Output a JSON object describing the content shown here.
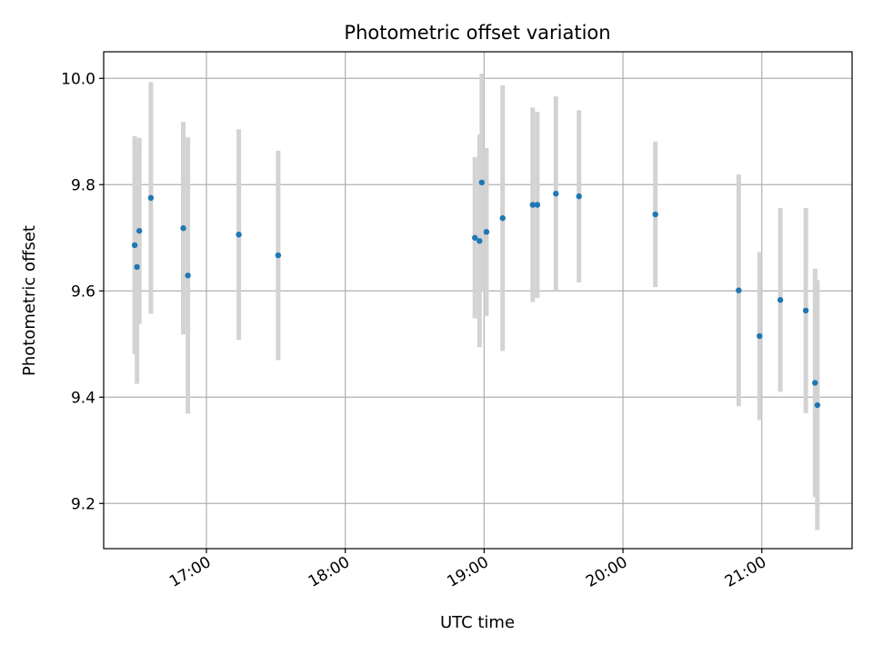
{
  "chart_data": {
    "type": "scatter",
    "title": "Photometric offset variation",
    "xlabel": "UTC time",
    "ylabel": "Photometric offset",
    "xlim_hours": [
      16.26,
      21.65
    ],
    "ylim": [
      9.115,
      10.05
    ],
    "grid": true,
    "x_ticks": [
      "17:00",
      "18:00",
      "19:00",
      "20:00",
      "21:00"
    ],
    "y_ticks": [
      "9.2",
      "9.4",
      "9.6",
      "9.8",
      "10.0"
    ],
    "colors": {
      "point": "#1f77b4",
      "errorbar": "#d3d3d3",
      "grid": "#b0b0b0"
    },
    "points": [
      {
        "x": "16:29",
        "y": 9.686,
        "err": 0.205
      },
      {
        "x": "16:30",
        "y": 9.645,
        "err": 0.22
      },
      {
        "x": "16:31",
        "y": 9.713,
        "err": 0.175
      },
      {
        "x": "16:36",
        "y": 9.775,
        "err": 0.218
      },
      {
        "x": "16:50",
        "y": 9.718,
        "err": 0.2
      },
      {
        "x": "16:52",
        "y": 9.629,
        "err": 0.26
      },
      {
        "x": "17:14",
        "y": 9.706,
        "err": 0.198
      },
      {
        "x": "17:31",
        "y": 9.667,
        "err": 0.197
      },
      {
        "x": "18:56",
        "y": 9.7,
        "err": 0.152
      },
      {
        "x": "18:58",
        "y": 9.694,
        "err": 0.2
      },
      {
        "x": "18:59",
        "y": 9.804,
        "err": 0.205
      },
      {
        "x": "19:01",
        "y": 9.711,
        "err": 0.158
      },
      {
        "x": "19:08",
        "y": 9.737,
        "err": 0.25
      },
      {
        "x": "19:21",
        "y": 9.762,
        "err": 0.183
      },
      {
        "x": "19:23",
        "y": 9.762,
        "err": 0.175
      },
      {
        "x": "19:31",
        "y": 9.783,
        "err": 0.183
      },
      {
        "x": "19:41",
        "y": 9.778,
        "err": 0.162
      },
      {
        "x": "20:14",
        "y": 9.744,
        "err": 0.137
      },
      {
        "x": "20:50",
        "y": 9.601,
        "err": 0.218
      },
      {
        "x": "20:59",
        "y": 9.515,
        "err": 0.158
      },
      {
        "x": "21:08",
        "y": 9.583,
        "err": 0.173
      },
      {
        "x": "21:19",
        "y": 9.563,
        "err": 0.193
      },
      {
        "x": "21:23",
        "y": 9.427,
        "err": 0.215
      },
      {
        "x": "21:24",
        "y": 9.385,
        "err": 0.235
      }
    ]
  }
}
